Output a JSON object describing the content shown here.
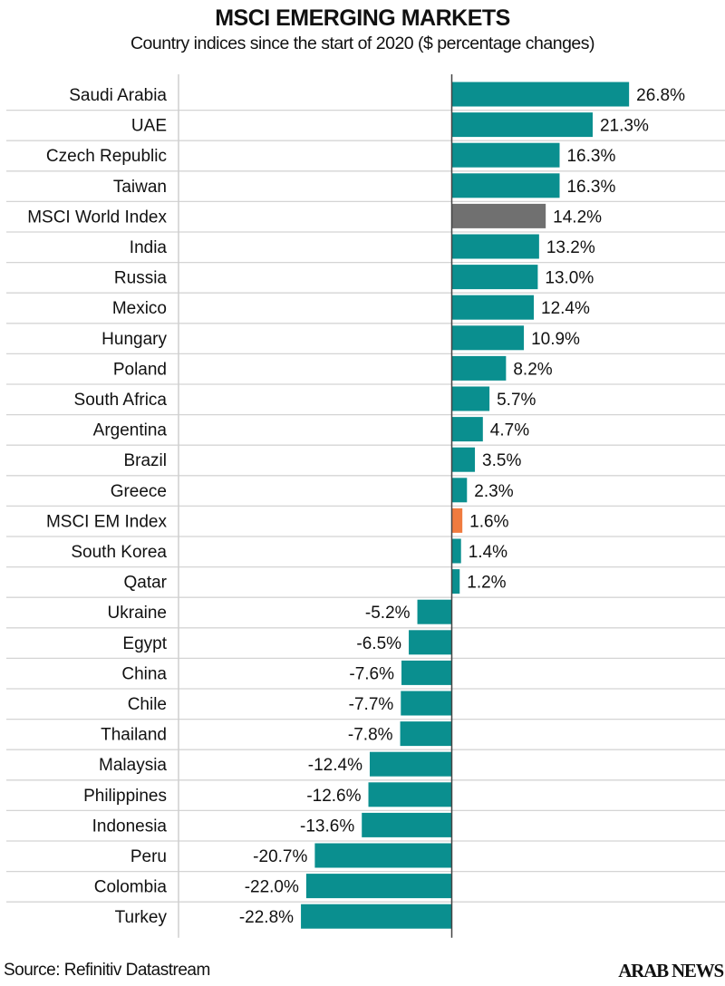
{
  "chart_data": {
    "type": "bar",
    "orientation": "horizontal",
    "title": "MSCI EMERGING MARKETS",
    "subtitle": "Country indices since the start of 2020 ($ percentage changes)",
    "xlabel": "",
    "ylabel": "",
    "unit": "%",
    "grid": true,
    "xlim": [
      -22.8,
      26.8
    ],
    "categories": [
      "Saudi Arabia",
      "UAE",
      "Czech Republic",
      "Taiwan",
      "MSCI World Index",
      "India",
      "Russia",
      "Mexico",
      "Hungary",
      "Poland",
      "South Africa",
      "Argentina",
      "Brazil",
      "Greece",
      "MSCI EM Index",
      "South Korea",
      "Qatar",
      "Ukraine",
      "Egypt",
      "China",
      "Chile",
      "Thailand",
      "Malaysia",
      "Philippines",
      "Indonesia",
      "Peru",
      "Colombia",
      "Turkey"
    ],
    "values": [
      26.8,
      21.3,
      16.3,
      16.3,
      14.2,
      13.2,
      13.0,
      12.4,
      10.9,
      8.2,
      5.7,
      4.7,
      3.5,
      2.3,
      1.6,
      1.4,
      1.2,
      -5.2,
      -6.5,
      -7.6,
      -7.7,
      -7.8,
      -12.4,
      -12.6,
      -13.6,
      -20.7,
      -22.0,
      -22.8
    ],
    "value_labels": [
      "26.8%",
      "21.3%",
      "16.3%",
      "16.3%",
      "14.2%",
      "13.2%",
      "13.0%",
      "12.4%",
      "10.9%",
      "8.2%",
      "5.7%",
      "4.7%",
      "3.5%",
      "2.3%",
      "1.6%",
      "1.4%",
      "1.2%",
      "-5.2%",
      "-6.5%",
      "-7.6%",
      "-7.7%",
      "-7.8%",
      "-12.4%",
      "-12.6%",
      "-13.6%",
      "-20.7%",
      "-22.0%",
      "-22.8%"
    ],
    "highlight": {
      "MSCI World Index": "#707070",
      "MSCI EM Index": "#f07b3f"
    },
    "colors": {
      "default_bar": "#0a8f8f",
      "world_index": "#707070",
      "em_index": "#f07b3f"
    }
  },
  "footer": {
    "source": "Source: Refinitiv Datastream",
    "brand": "ARAB NEWS"
  }
}
